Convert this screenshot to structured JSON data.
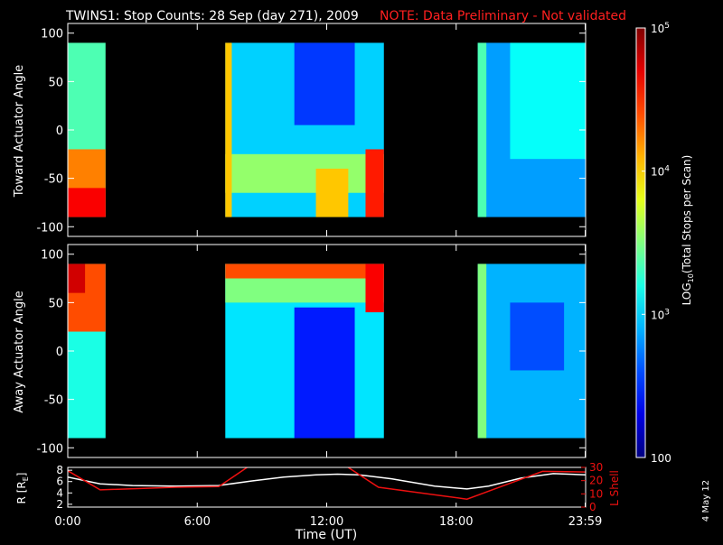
{
  "title": "TWINS1: Stop Counts: 28 Sep (day 271), 2009",
  "note": "NOTE: Data Preliminary - Not validated",
  "stamp": "4 May 12",
  "colors": {
    "note": "#ff2020",
    "lshell": "#ee1010",
    "rline": "#ffffff",
    "axes": "#ffffff",
    "background": "#000000"
  },
  "colorbar": {
    "label": "LOG",
    "label_sub": "10",
    "label_rest": "(Total Stops per Scan)",
    "ticks": [
      {
        "base": "10",
        "exp": "5",
        "value": 100000
      },
      {
        "base": "10",
        "exp": "4",
        "value": 10000
      },
      {
        "base": "10",
        "exp": "3",
        "value": 1000
      },
      {
        "base": "100",
        "exp": "",
        "value": 100
      }
    ],
    "range": [
      100,
      100000
    ],
    "scale": "log"
  },
  "chart_data": [
    {
      "type": "heatmap",
      "panel": "toward",
      "ylabel": "Toward Actuator Angle",
      "yticks": [
        "100",
        "50",
        "0",
        "-50",
        "-100"
      ],
      "ylim": [
        -110,
        110
      ],
      "angle_range": [
        -90,
        90
      ],
      "x_unit": "hours UT",
      "data_segments": [
        {
          "x_start": 0.0,
          "x_end": 1.75
        },
        {
          "x_start": 7.3,
          "x_end": 14.65
        },
        {
          "x_start": 19.0,
          "x_end": 24.0
        }
      ],
      "bands": [
        {
          "x_start": 0.0,
          "x_end": 1.75,
          "angle_from": -90,
          "angle_to": 90,
          "level": 0.45
        },
        {
          "x_start": 0.0,
          "x_end": 1.75,
          "angle_from": -90,
          "angle_to": -20,
          "level": 0.75
        },
        {
          "x_start": 0.0,
          "x_end": 1.75,
          "angle_from": -90,
          "angle_to": -60,
          "level": 0.88
        },
        {
          "x_start": 7.3,
          "x_end": 14.65,
          "angle_from": -90,
          "angle_to": 90,
          "level": 0.33
        },
        {
          "x_start": 10.5,
          "x_end": 13.3,
          "angle_from": 5,
          "angle_to": 90,
          "level": 0.18
        },
        {
          "x_start": 7.3,
          "x_end": 14.65,
          "angle_from": -65,
          "angle_to": -25,
          "level": 0.52
        },
        {
          "x_start": 7.3,
          "x_end": 7.6,
          "angle_from": -90,
          "angle_to": 90,
          "level": 0.68
        },
        {
          "x_start": 11.5,
          "x_end": 13.0,
          "angle_from": -90,
          "angle_to": -40,
          "level": 0.68
        },
        {
          "x_start": 13.8,
          "x_end": 14.65,
          "angle_from": -90,
          "angle_to": -20,
          "level": 0.85
        },
        {
          "x_start": 19.0,
          "x_end": 24.0,
          "angle_from": -90,
          "angle_to": 90,
          "level": 0.28
        },
        {
          "x_start": 19.0,
          "x_end": 19.4,
          "angle_from": -90,
          "angle_to": 90,
          "level": 0.45
        },
        {
          "x_start": 20.5,
          "x_end": 24.0,
          "angle_from": -30,
          "angle_to": 90,
          "level": 0.38
        }
      ]
    },
    {
      "type": "heatmap",
      "panel": "away",
      "ylabel": "Away Actuator Angle",
      "yticks": [
        "100",
        "50",
        "0",
        "-50",
        "-100"
      ],
      "ylim": [
        -110,
        110
      ],
      "angle_range": [
        -90,
        90
      ],
      "x_unit": "hours UT",
      "data_segments": [
        {
          "x_start": 0.0,
          "x_end": 1.75
        },
        {
          "x_start": 7.3,
          "x_end": 14.65
        },
        {
          "x_start": 19.0,
          "x_end": 24.0
        }
      ],
      "bands": [
        {
          "x_start": 0.0,
          "x_end": 1.75,
          "angle_from": -90,
          "angle_to": 90,
          "level": 0.4
        },
        {
          "x_start": 0.0,
          "x_end": 1.75,
          "angle_from": 20,
          "angle_to": 90,
          "level": 0.8
        },
        {
          "x_start": 0.0,
          "x_end": 0.8,
          "angle_from": 60,
          "angle_to": 90,
          "level": 0.92
        },
        {
          "x_start": 7.3,
          "x_end": 14.65,
          "angle_from": -90,
          "angle_to": 90,
          "level": 0.35
        },
        {
          "x_start": 10.5,
          "x_end": 13.3,
          "angle_from": -90,
          "angle_to": 45,
          "level": 0.15
        },
        {
          "x_start": 7.3,
          "x_end": 14.65,
          "angle_from": 50,
          "angle_to": 90,
          "level": 0.5
        },
        {
          "x_start": 7.3,
          "x_end": 14.65,
          "angle_from": 75,
          "angle_to": 90,
          "level": 0.8
        },
        {
          "x_start": 13.8,
          "x_end": 14.65,
          "angle_from": 40,
          "angle_to": 90,
          "level": 0.88
        },
        {
          "x_start": 19.0,
          "x_end": 24.0,
          "angle_from": -90,
          "angle_to": 90,
          "level": 0.3
        },
        {
          "x_start": 19.0,
          "x_end": 19.4,
          "angle_from": -90,
          "angle_to": 90,
          "level": 0.5
        },
        {
          "x_start": 20.5,
          "x_end": 23.0,
          "angle_from": -20,
          "angle_to": 50,
          "level": 0.2
        }
      ]
    },
    {
      "type": "line",
      "panel": "orbit",
      "xlabel": "Time (UT)",
      "xticks": [
        "0:00",
        "6:00",
        "12:00",
        "18:00",
        "23:59"
      ],
      "xtick_values": [
        0,
        6,
        12,
        18,
        23.98
      ],
      "xlim": [
        0,
        24
      ],
      "ylabel_left": "R [R",
      "ylabel_left_sub": "E",
      "ylabel_left_end": "]",
      "yticks_left": [
        "8",
        "6",
        "4",
        "2"
      ],
      "ylim_left": [
        1.5,
        8.5
      ],
      "ylabel_right": "L Shell",
      "yticks_right": [
        "30",
        "20",
        "10",
        "0"
      ],
      "ylim_right": [
        0,
        30
      ],
      "series": [
        {
          "name": "R [RE]",
          "axis": "left",
          "x": [
            0,
            1.5,
            3,
            5,
            7,
            8.5,
            10,
            11.5,
            12.5,
            13.5,
            15,
            17,
            18.5,
            19.5,
            21,
            22.5,
            24
          ],
          "values": [
            6.8,
            5.6,
            5.3,
            5.2,
            5.3,
            6.1,
            6.8,
            7.2,
            7.3,
            7.2,
            6.5,
            5.2,
            4.7,
            5.2,
            6.6,
            7.4,
            7.2
          ]
        },
        {
          "name": "L Shell",
          "axis": "right",
          "x": [
            0,
            1.5,
            5,
            7,
            8.4,
            12.9,
            14.4,
            18.5,
            20.5,
            22,
            24
          ],
          "values": [
            27.5,
            13,
            15,
            15.5,
            31,
            31,
            15,
            6,
            18,
            27,
            26.5
          ]
        }
      ]
    }
  ]
}
